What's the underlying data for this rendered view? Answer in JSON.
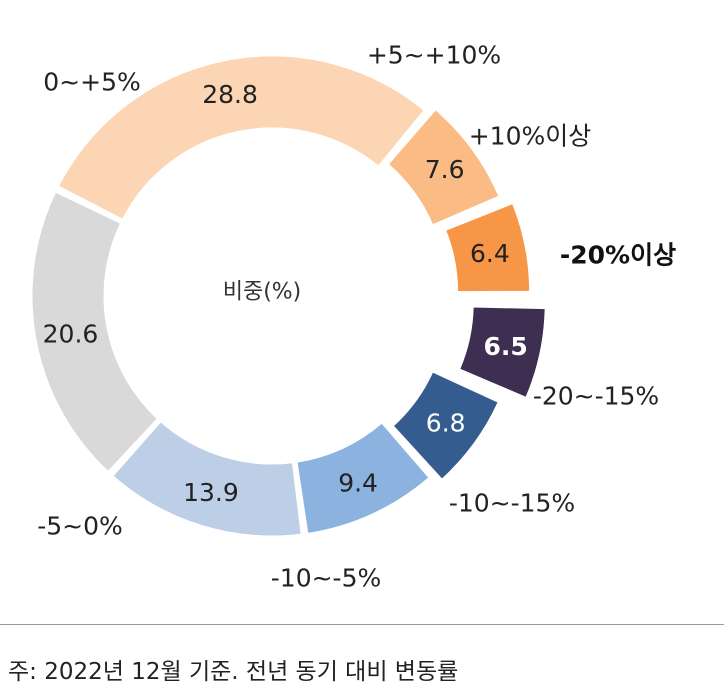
{
  "chart_data": {
    "type": "pie",
    "center_label": "비중(%)",
    "slices": [
      {
        "label": "-20%이상",
        "value": 6.5,
        "value_label": "6.5",
        "color": "#3d2e52",
        "value_color": "#ffffff",
        "emphasized": true
      },
      {
        "label": "-20~-15%",
        "value": 6.8,
        "value_label": "6.8",
        "color": "#355c8f",
        "value_color": "#ffffff"
      },
      {
        "label": "-10~-15%",
        "value": 9.4,
        "value_label": "9.4",
        "color": "#8cb2e0",
        "value_color": "#222222"
      },
      {
        "label": "-10~-5%",
        "value": 13.9,
        "value_label": "13.9",
        "color": "#bccfe7",
        "value_color": "#222222"
      },
      {
        "label": "-5~0%",
        "value": 20.6,
        "value_label": "20.6",
        "color": "#d9d9d9",
        "value_color": "#222222"
      },
      {
        "label": "0~+5%",
        "value": 28.8,
        "value_label": "28.8",
        "color": "#fcd5b5",
        "value_color": "#222222"
      },
      {
        "label": "+5~+10%",
        "value": 7.6,
        "value_label": "7.6",
        "color": "#fbbb85",
        "value_color": "#222222"
      },
      {
        "label": "+10%이상",
        "value": 6.4,
        "value_label": "6.4",
        "color": "#f79646",
        "value_color": "#222222"
      }
    ]
  },
  "footnote": "주: 2022년 12월 기준. 전년 동기 대비 변동률"
}
